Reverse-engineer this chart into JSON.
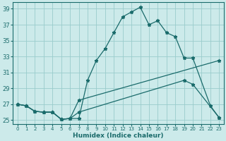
{
  "xlabel": "Humidex (Indice chaleur)",
  "bg_color": "#cceaea",
  "grid_color": "#99cccc",
  "line_color": "#1a6b6b",
  "xlim": [
    -0.5,
    23.5
  ],
  "ylim": [
    24.5,
    39.8
  ],
  "yticks": [
    25,
    27,
    29,
    31,
    33,
    35,
    37,
    39
  ],
  "xticks": [
    0,
    1,
    2,
    3,
    4,
    5,
    6,
    7,
    8,
    9,
    10,
    11,
    12,
    13,
    14,
    15,
    16,
    17,
    18,
    19,
    20,
    21,
    22,
    23
  ],
  "series1": [
    [
      0,
      27
    ],
    [
      1,
      26.8
    ],
    [
      2,
      26.1
    ],
    [
      3,
      26.0
    ],
    [
      4,
      26.0
    ],
    [
      5,
      25.1
    ],
    [
      6,
      25.2
    ],
    [
      7,
      25.2
    ],
    [
      8,
      30.0
    ],
    [
      9,
      32.5
    ],
    [
      10,
      34.0
    ],
    [
      11,
      36.0
    ],
    [
      12,
      38.0
    ],
    [
      13,
      38.6
    ],
    [
      14,
      39.2
    ],
    [
      15,
      37.0
    ],
    [
      16,
      37.5
    ],
    [
      17,
      36.0
    ],
    [
      18,
      35.5
    ],
    [
      19,
      32.8
    ],
    [
      20,
      32.8
    ],
    [
      22,
      26.8
    ],
    [
      23,
      25.3
    ]
  ],
  "series2": [
    [
      0,
      27
    ],
    [
      1,
      26.8
    ],
    [
      2,
      26.1
    ],
    [
      3,
      26.0
    ],
    [
      4,
      26.0
    ],
    [
      5,
      25.1
    ],
    [
      6,
      25.2
    ],
    [
      7,
      27.5
    ],
    [
      23,
      32.5
    ]
  ],
  "series3": [
    [
      0,
      27
    ],
    [
      1,
      26.8
    ],
    [
      2,
      26.1
    ],
    [
      3,
      26.0
    ],
    [
      4,
      26.0
    ],
    [
      5,
      25.1
    ],
    [
      6,
      25.2
    ],
    [
      7,
      26.0
    ],
    [
      19,
      30.0
    ],
    [
      20,
      29.5
    ],
    [
      23,
      25.3
    ]
  ]
}
